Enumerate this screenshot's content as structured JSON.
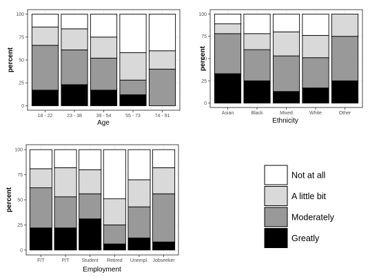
{
  "chart_data": [
    {
      "type": "bar",
      "stacked": true,
      "xlabel": "Age",
      "ylabel": "percent",
      "ylim": [
        0,
        100
      ],
      "yticks": [
        0,
        25,
        50,
        75,
        100
      ],
      "grid": true,
      "categories": [
        "18 - 22",
        "23 - 38",
        "39 - 54",
        "55 - 73",
        "74 - 91"
      ],
      "series": [
        {
          "name": "Greatly",
          "values": [
            17,
            23,
            17,
            12,
            0
          ]
        },
        {
          "name": "Moderately",
          "values": [
            49,
            38,
            35,
            16,
            40
          ]
        },
        {
          "name": "A little bit",
          "values": [
            20,
            23,
            23,
            30,
            20
          ]
        },
        {
          "name": "Not at all",
          "values": [
            14,
            16,
            25,
            42,
            40
          ]
        }
      ]
    },
    {
      "type": "bar",
      "stacked": true,
      "xlabel": "Ethnicity",
      "ylabel": "percent",
      "ylim": [
        0,
        100
      ],
      "yticks": [
        0,
        25,
        50,
        75,
        100
      ],
      "grid": true,
      "categories": [
        "Asian",
        "Black",
        "Mixed",
        "White",
        "Other"
      ],
      "series": [
        {
          "name": "Greatly",
          "values": [
            33,
            25,
            13,
            17,
            25
          ]
        },
        {
          "name": "Moderately",
          "values": [
            45,
            35,
            40,
            34,
            50
          ]
        },
        {
          "name": "A little bit",
          "values": [
            11,
            18,
            27,
            25,
            25
          ]
        },
        {
          "name": "Not at all",
          "values": [
            11,
            22,
            20,
            24,
            0
          ]
        }
      ]
    },
    {
      "type": "bar",
      "stacked": true,
      "xlabel": "Employment",
      "ylabel": "percent",
      "ylim": [
        0,
        100
      ],
      "yticks": [
        0,
        25,
        50,
        75,
        100
      ],
      "grid": true,
      "categories": [
        "F/T",
        "P/T",
        "Student",
        "Retired",
        "Unempl.",
        "Jobseeker"
      ],
      "series": [
        {
          "name": "Greatly",
          "values": [
            22,
            22,
            31,
            6,
            12,
            8
          ]
        },
        {
          "name": "Moderately",
          "values": [
            40,
            31,
            25,
            19,
            31,
            48
          ]
        },
        {
          "name": "A little bit",
          "values": [
            19,
            29,
            24,
            26,
            27,
            26
          ]
        },
        {
          "name": "Not at all",
          "values": [
            19,
            18,
            20,
            49,
            30,
            18
          ]
        }
      ]
    }
  ],
  "legend": {
    "placement": "bottom-right",
    "items": [
      {
        "label": "Not at all",
        "color": "#ffffff"
      },
      {
        "label": "A little bit",
        "color": "#d9d9d9"
      },
      {
        "label": "Moderately",
        "color": "#999999"
      },
      {
        "label": "Greatly",
        "color": "#000000"
      }
    ]
  },
  "series_colors": {
    "Greatly": "#000000",
    "Moderately": "#999999",
    "A little bit": "#d9d9d9",
    "Not at all": "#ffffff"
  }
}
